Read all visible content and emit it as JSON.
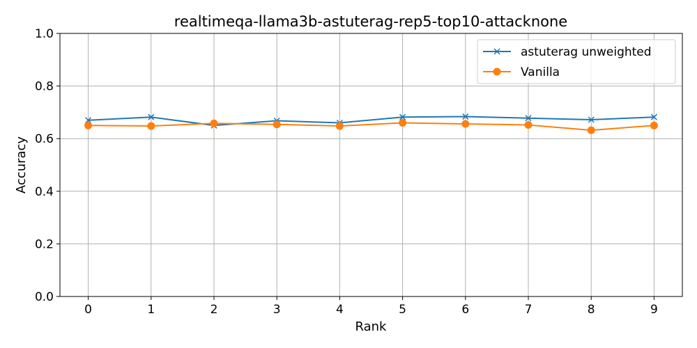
{
  "chart_data": {
    "type": "line",
    "title": "realtimeqa-llama3b-astuterag-rep5-top10-attacknone",
    "xlabel": "Rank",
    "ylabel": "Accuracy",
    "x": [
      0,
      1,
      2,
      3,
      4,
      5,
      6,
      7,
      8,
      9
    ],
    "xticks": [
      "0",
      "1",
      "2",
      "3",
      "4",
      "5",
      "6",
      "7",
      "8",
      "9"
    ],
    "xlim": [
      -0.45,
      9.45
    ],
    "ylim": [
      0.0,
      1.0
    ],
    "yticks": [
      "0.0",
      "0.2",
      "0.4",
      "0.6",
      "0.8",
      "1.0"
    ],
    "ytick_values": [
      0.0,
      0.2,
      0.4,
      0.6,
      0.8,
      1.0
    ],
    "grid": true,
    "legend_position": "top-right",
    "series": [
      {
        "name": "astuterag unweighted",
        "color": "#1f77b4",
        "marker": "x",
        "values": [
          0.67,
          0.682,
          0.65,
          0.668,
          0.66,
          0.682,
          0.684,
          0.678,
          0.672,
          0.682
        ]
      },
      {
        "name": "Vanilla",
        "color": "#ff7f0e",
        "marker": "circle",
        "values": [
          0.65,
          0.648,
          0.658,
          0.654,
          0.648,
          0.66,
          0.656,
          0.652,
          0.632,
          0.65
        ]
      }
    ]
  }
}
